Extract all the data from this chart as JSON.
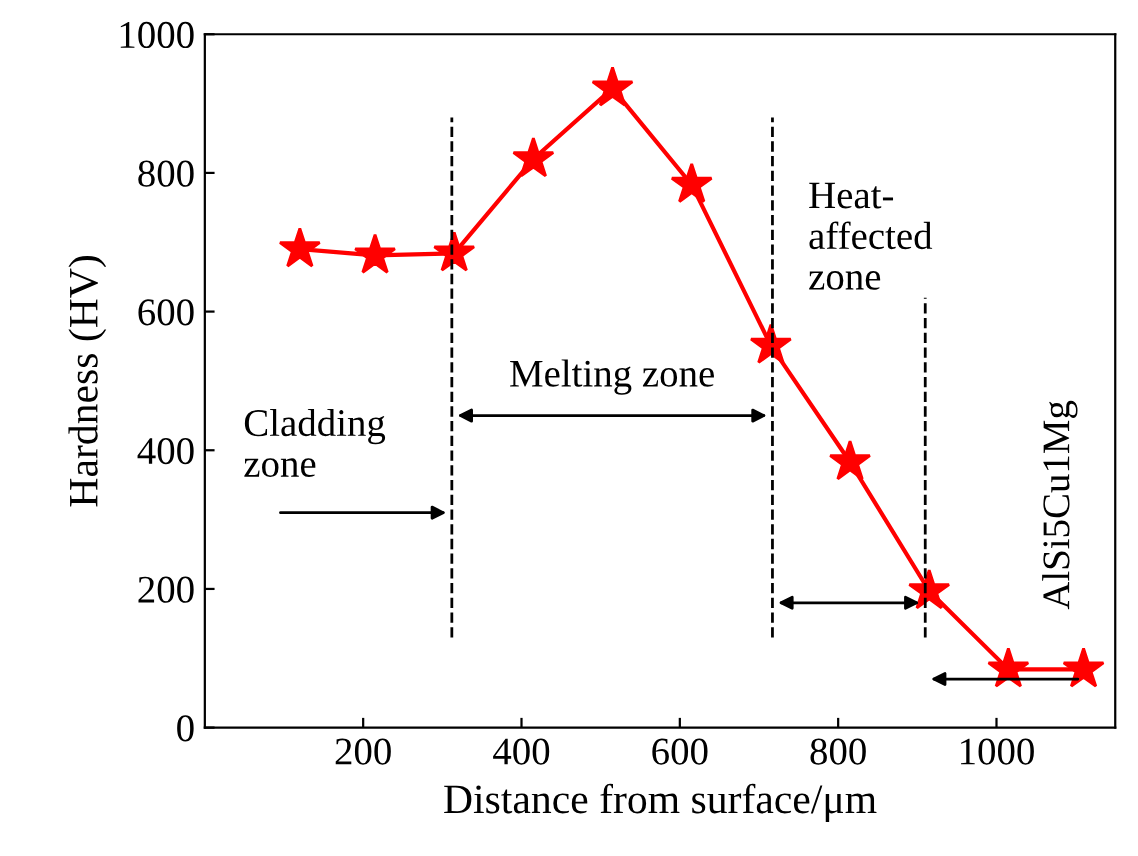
{
  "chart_data": {
    "type": "line",
    "xlabel": "Distance from surface/μm",
    "ylabel": "Hardness (HV)",
    "x": [
      120,
      215,
      315,
      415,
      515,
      615,
      715,
      815,
      915,
      1015,
      1110
    ],
    "series": [
      {
        "color": "#ff0000",
        "values": [
          690,
          681,
          684,
          820,
          922,
          783,
          551,
          383,
          197,
          84,
          84
        ]
      }
    ],
    "marker": "star",
    "line_style": "solid",
    "grid": false,
    "xlim": [
      0,
      1150
    ],
    "xticks": [
      200,
      400,
      600,
      800,
      1000
    ],
    "ylim": [
      0,
      1000
    ],
    "yticks": [
      0,
      200,
      400,
      600,
      800,
      1000
    ],
    "ref_lines": [
      {
        "axis": "x",
        "value": 312,
        "line_style": "dashed",
        "color": "#000000"
      },
      {
        "axis": "x",
        "value": 717,
        "line_style": "dashed",
        "color": "#000000"
      },
      {
        "axis": "x",
        "value": 910,
        "line_style": "dashed",
        "color": "#000000"
      }
    ],
    "annotations": [
      "Cladding\nzone",
      "Melting zone",
      "Heat-\naffected\nzone",
      "AlSi5Cu1Mg"
    ]
  }
}
